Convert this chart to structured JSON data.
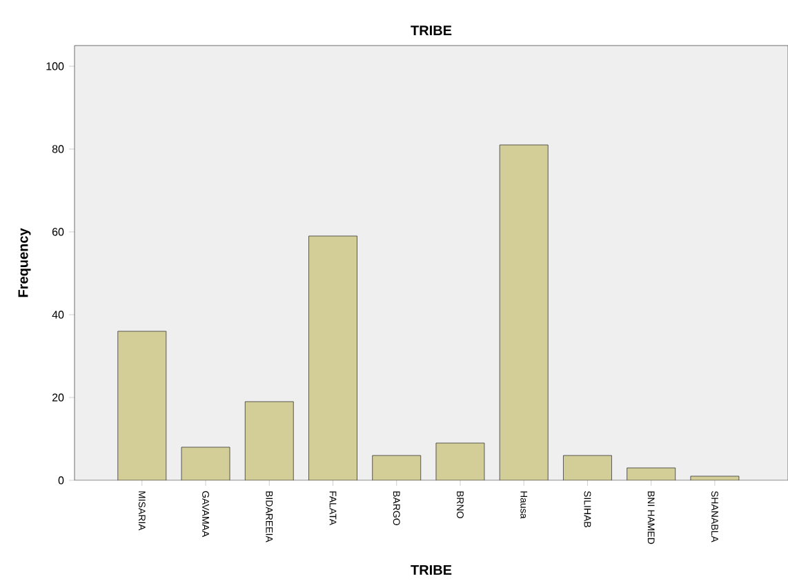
{
  "chart_data": {
    "type": "bar",
    "title": "TRIBE",
    "xlabel": "TRIBE",
    "ylabel": "Frequency",
    "categories": [
      "MISARIA",
      "GAVAMAA",
      "BIDAREEIA",
      "FALATA",
      "BARGO",
      "BRNO",
      "Hausa",
      "SILIHAB",
      "BNI HAMED",
      "SHANABLA"
    ],
    "values": [
      36,
      8,
      19,
      59,
      6,
      9,
      81,
      6,
      3,
      1
    ],
    "color": "#d3ce97",
    "ylim": [
      0,
      105
    ],
    "yticks": [
      0,
      20,
      40,
      60,
      80,
      100
    ]
  }
}
